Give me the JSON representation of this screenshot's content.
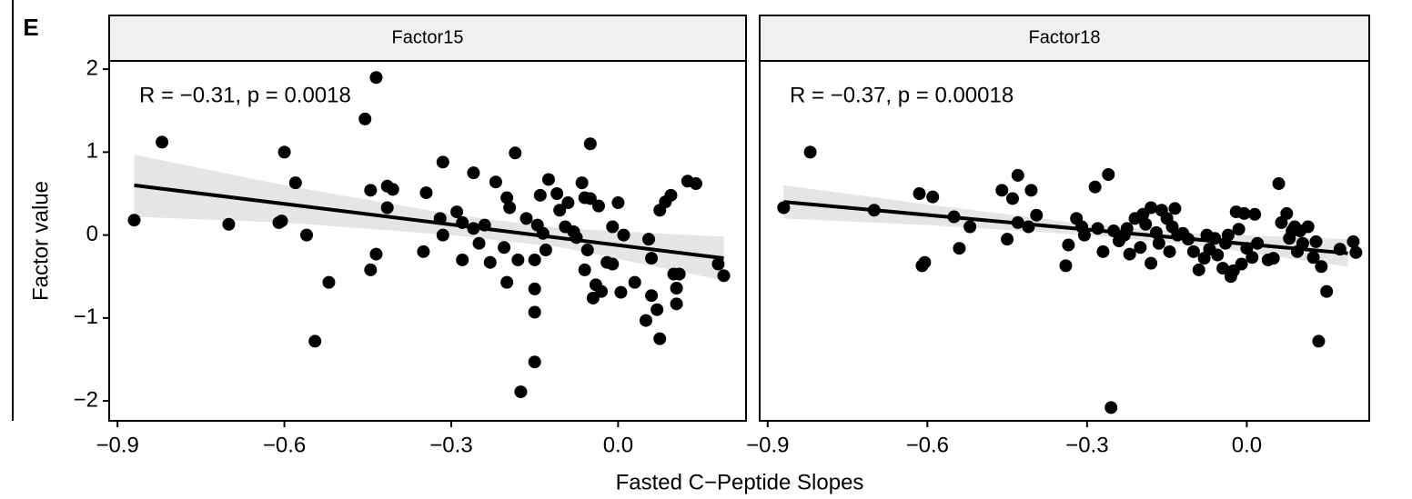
{
  "panel_label": "E",
  "xlabel": "Fasted C−Peptide Slopes",
  "ylabel": "Factor value",
  "chart_data": [
    {
      "type": "scatter",
      "facet": "Factor15",
      "annotation": "R = −0.31, p = 0.0018",
      "color": "#000000",
      "x": [
        -0.87,
        -0.82,
        -0.7,
        -0.61,
        -0.605,
        -0.6,
        -0.58,
        -0.56,
        -0.545,
        -0.52,
        -0.455,
        -0.445,
        -0.445,
        -0.435,
        -0.435,
        -0.415,
        -0.415,
        -0.405,
        -0.35,
        -0.345,
        -0.315,
        -0.315,
        -0.32,
        -0.29,
        -0.28,
        -0.28,
        -0.26,
        -0.26,
        -0.25,
        -0.24,
        -0.23,
        -0.22,
        -0.205,
        -0.2,
        -0.2,
        -0.195,
        -0.185,
        -0.18,
        -0.175,
        -0.165,
        -0.15,
        -0.15,
        -0.15,
        -0.15,
        -0.145,
        -0.14,
        -0.135,
        -0.13,
        -0.125,
        -0.11,
        -0.105,
        -0.095,
        -0.09,
        -0.08,
        -0.075,
        -0.065,
        -0.06,
        -0.06,
        -0.055,
        -0.05,
        -0.05,
        -0.045,
        -0.04,
        -0.035,
        -0.03,
        -0.02,
        -0.01,
        -0.01,
        0.0,
        0.005,
        0.01,
        0.03,
        0.05,
        0.055,
        0.06,
        0.06,
        0.07,
        0.075,
        0.075,
        0.085,
        0.095,
        0.1,
        0.105,
        0.105,
        0.11,
        0.125,
        0.14,
        0.18,
        0.19
      ],
      "y": [
        0.18,
        1.12,
        0.13,
        0.15,
        0.17,
        1.0,
        0.63,
        0.0,
        -1.28,
        -0.57,
        1.4,
        0.54,
        -0.42,
        1.9,
        -0.23,
        0.59,
        0.33,
        0.55,
        -0.2,
        0.51,
        0.88,
        0.0,
        0.2,
        0.28,
        0.15,
        -0.3,
        0.75,
        0.08,
        -0.1,
        0.12,
        -0.33,
        0.64,
        -0.15,
        0.45,
        -0.57,
        0.33,
        0.99,
        -0.3,
        -1.89,
        0.2,
        -0.3,
        -0.65,
        -0.93,
        -1.53,
        0.12,
        0.48,
        0.02,
        -0.18,
        0.67,
        0.5,
        0.3,
        0.1,
        0.39,
        0.04,
        -0.03,
        0.63,
        0.45,
        -0.42,
        -0.18,
        1.1,
        0.44,
        -0.76,
        -0.6,
        0.35,
        -0.68,
        -0.33,
        0.1,
        -0.35,
        0.39,
        -0.69,
        0.0,
        -0.57,
        -1.03,
        -0.05,
        -0.73,
        -0.28,
        -0.9,
        -1.25,
        0.3,
        0.4,
        0.48,
        -0.47,
        -0.64,
        -0.83,
        -0.47,
        0.65,
        0.62,
        -0.35,
        -0.49
      ],
      "fit_x": [
        -0.87,
        0.19
      ],
      "fit_y": [
        0.6,
        -0.28
      ],
      "band_x": [
        -0.87,
        -0.6,
        -0.3,
        -0.1,
        0.19
      ],
      "band_upper": [
        0.97,
        0.6,
        0.25,
        0.08,
        -0.02
      ],
      "band_lower": [
        0.22,
        0.15,
        0.0,
        -0.15,
        -0.55
      ],
      "xlim": [
        -0.915,
        0.23
      ],
      "ylim": [
        -2.24,
        2.1
      ],
      "xticks": [
        {
          "value": -0.9,
          "label": "−0.9"
        },
        {
          "value": -0.6,
          "label": "−0.6"
        },
        {
          "value": -0.3,
          "label": "−0.3"
        },
        {
          "value": 0,
          "label": "0.0"
        }
      ],
      "yticks": [
        {
          "value": -2,
          "label": "−2"
        },
        {
          "value": -1,
          "label": "−1"
        },
        0,
        1,
        2
      ]
    },
    {
      "type": "scatter",
      "facet": "Factor18",
      "annotation": "R = −0.37, p = 0.00018",
      "color": "#000000",
      "x": [
        -0.87,
        -0.82,
        -0.7,
        -0.615,
        -0.61,
        -0.605,
        -0.59,
        -0.55,
        -0.54,
        -0.52,
        -0.46,
        -0.45,
        -0.44,
        -0.43,
        -0.43,
        -0.41,
        -0.405,
        -0.395,
        -0.34,
        -0.335,
        -0.32,
        -0.31,
        -0.305,
        -0.285,
        -0.28,
        -0.27,
        -0.26,
        -0.25,
        -0.24,
        -0.225,
        -0.22,
        -0.21,
        -0.2,
        -0.195,
        -0.19,
        -0.18,
        -0.18,
        -0.17,
        -0.165,
        -0.16,
        -0.15,
        -0.145,
        -0.14,
        -0.135,
        -0.13,
        -0.12,
        -0.11,
        -0.1,
        -0.09,
        -0.08,
        -0.075,
        -0.07,
        -0.06,
        -0.055,
        -0.045,
        -0.04,
        -0.035,
        -0.03,
        -0.025,
        -0.02,
        -0.015,
        -0.01,
        -0.005,
        0.0,
        0.01,
        0.015,
        0.02,
        0.04,
        0.05,
        0.06,
        0.065,
        0.075,
        0.08,
        0.085,
        0.09,
        0.095,
        0.1,
        0.105,
        0.115,
        0.125,
        0.13,
        0.135,
        0.14,
        0.15,
        0.175,
        0.2,
        0.205,
        -0.255,
        -0.23
      ],
      "y": [
        0.33,
        1.0,
        0.3,
        0.5,
        -0.37,
        -0.33,
        0.46,
        0.22,
        -0.16,
        0.1,
        0.54,
        -0.05,
        0.44,
        0.72,
        0.15,
        0.1,
        0.54,
        0.24,
        -0.37,
        -0.12,
        0.2,
        0.1,
        0.0,
        0.58,
        0.08,
        -0.2,
        0.73,
        0.05,
        -0.07,
        0.08,
        -0.23,
        0.2,
        -0.15,
        0.25,
        0.13,
        0.33,
        -0.34,
        0.03,
        -0.1,
        0.3,
        0.2,
        -0.2,
        0.1,
        0.32,
        0.0,
        0.02,
        -0.05,
        -0.2,
        -0.42,
        -0.28,
        0.0,
        -0.17,
        -0.04,
        -0.24,
        -0.4,
        -0.1,
        0.0,
        -0.5,
        -0.43,
        0.28,
        0.07,
        -0.35,
        0.26,
        -0.16,
        -0.27,
        0.25,
        -0.1,
        -0.3,
        -0.28,
        0.62,
        0.15,
        0.26,
        -0.04,
        0.05,
        0.1,
        -0.2,
        0.05,
        -0.1,
        0.1,
        -0.27,
        -0.08,
        -1.28,
        -0.38,
        -0.68,
        -0.17,
        -0.08,
        -0.21,
        -2.08,
        0.0
      ],
      "fit_x": [
        -0.87,
        0.19
      ],
      "fit_y": [
        0.4,
        -0.22
      ],
      "band_x": [
        -0.87,
        -0.6,
        -0.3,
        -0.1,
        0.19
      ],
      "band_upper": [
        0.6,
        0.37,
        0.13,
        0.02,
        -0.05
      ],
      "band_lower": [
        0.2,
        0.12,
        0.0,
        -0.12,
        -0.38
      ],
      "xlim": [
        -0.915,
        0.23
      ],
      "ylim": [
        -2.24,
        2.1
      ],
      "xticks": [
        {
          "value": -0.9,
          "label": "−0.9"
        },
        {
          "value": -0.6,
          "label": "−0.6"
        },
        {
          "value": -0.3,
          "label": "−0.3"
        },
        {
          "value": 0,
          "label": "0.0"
        }
      ],
      "yticks": [
        {
          "value": -2,
          "label": "−2"
        },
        {
          "value": -1,
          "label": "−1"
        },
        0,
        1,
        2
      ]
    }
  ]
}
